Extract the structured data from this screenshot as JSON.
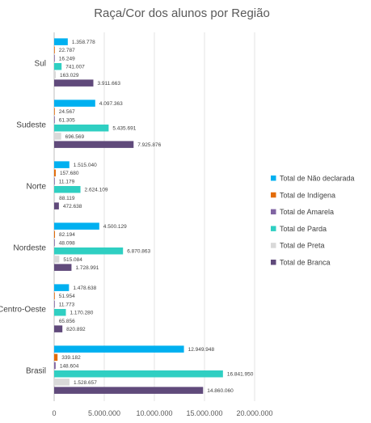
{
  "chart_data": {
    "type": "bar",
    "orientation": "horizontal",
    "title": "Raça/Cor dos alunos por Região",
    "categories": [
      "Sul",
      "Sudeste",
      "Norte",
      "Nordeste",
      "Centro-Oeste",
      "Brasil"
    ],
    "series": [
      {
        "name": "Total de Não declarada",
        "color": "#00B0F0",
        "values": [
          1358778,
          4097363,
          1515040,
          4500129,
          1478638,
          12949948
        ],
        "labels": [
          "1.358.778",
          "4.097.363",
          "1.515.040",
          "4.500.129",
          "1.478.638",
          "12.949.948"
        ]
      },
      {
        "name": "Total de Indígena",
        "color": "#E36C09",
        "values": [
          22787,
          24567,
          157680,
          82194,
          51954,
          339182
        ],
        "labels": [
          "22.787",
          "24.567",
          "157.680",
          "82.194",
          "51.954",
          "339.182"
        ]
      },
      {
        "name": "Total de Amarela",
        "color": "#8064A2",
        "values": [
          16249,
          61305,
          11179,
          48098,
          11773,
          148604
        ],
        "labels": [
          "16.249",
          "61.305",
          "11.179",
          "48.098",
          "11.773",
          "148.604"
        ]
      },
      {
        "name": "Total de Parda",
        "color": "#2FCFC2",
        "values": [
          741007,
          5435691,
          2624109,
          6870863,
          1170280,
          16841950
        ],
        "labels": [
          "741.007",
          "5.435.691",
          "2.624.109",
          "6.870.863",
          "1.170.280",
          "16.841.950"
        ]
      },
      {
        "name": "Total de Preta",
        "color": "#D9D9D9",
        "values": [
          163029,
          696569,
          88119,
          515084,
          65856,
          1528657
        ],
        "labels": [
          "163.029",
          "696.569",
          "88.119",
          "515.084",
          "65.856",
          "1.528.657"
        ]
      },
      {
        "name": "Total de Branca",
        "color": "#604A7B",
        "values": [
          3911663,
          7925876,
          472638,
          1728991,
          820892,
          14860060
        ],
        "labels": [
          "3.911.663",
          "7.925.876",
          "472.638",
          "1.728.991",
          "820.892",
          "14.860.060"
        ]
      }
    ],
    "xlim": [
      0,
      20000000
    ],
    "xticks": [
      0,
      5000000,
      10000000,
      15000000,
      20000000
    ],
    "xtick_labels": [
      "0",
      "5.000.000",
      "10.000.000",
      "15.000.000",
      "20.000.000"
    ],
    "grid": true,
    "legend_position": "right"
  }
}
